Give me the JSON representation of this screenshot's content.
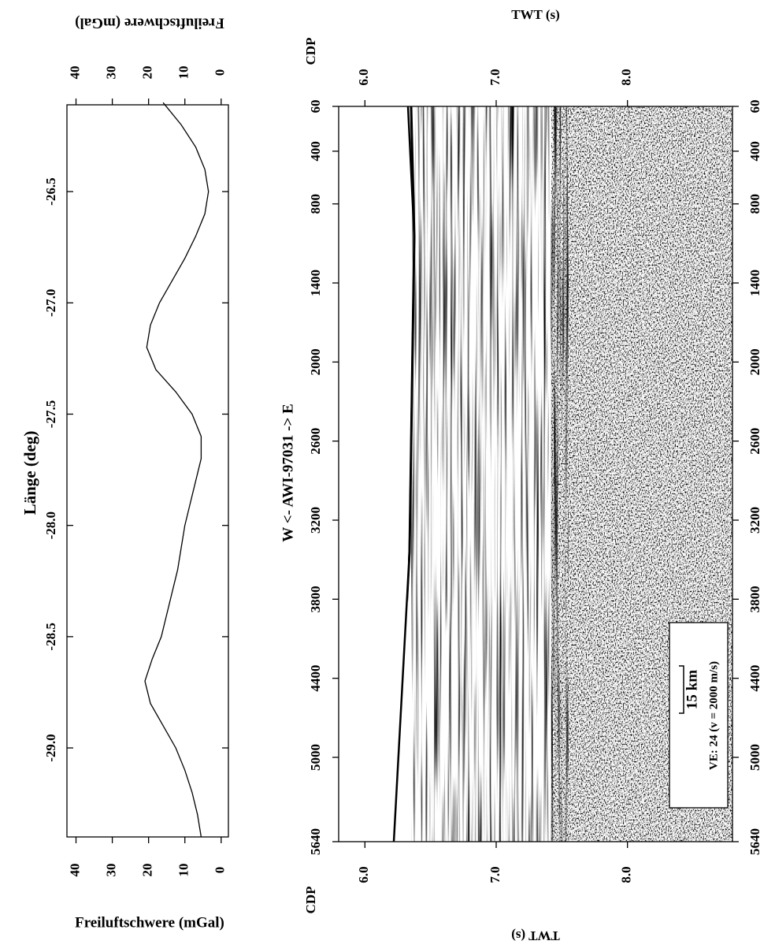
{
  "chart_data": [
    {
      "type": "line",
      "xlabel": "Länge (deg)",
      "ylabel": "Freiluftschwere (mGal)",
      "x": [
        -26.1,
        -26.2,
        -26.3,
        -26.4,
        -26.5,
        -26.6,
        -26.7,
        -26.8,
        -26.9,
        -27.0,
        -27.1,
        -27.2,
        -27.3,
        -27.4,
        -27.5,
        -27.6,
        -27.7,
        -27.8,
        -27.9,
        -28.0,
        -28.1,
        -28.2,
        -28.3,
        -28.4,
        -28.5,
        -28.6,
        -28.7,
        -28.8,
        -28.9,
        -29.0,
        -29.1,
        -29.2,
        -29.3,
        -29.4
      ],
      "values": [
        16,
        11,
        7,
        4.5,
        3.5,
        4.5,
        7,
        10,
        13.5,
        17,
        19.5,
        20.5,
        18,
        12.5,
        8,
        5.5,
        5.5,
        7,
        8.5,
        10,
        11,
        12,
        13.5,
        15,
        16.5,
        19,
        21,
        19.5,
        16,
        12.5,
        10,
        8,
        6.5,
        5.5
      ],
      "color": "#000000",
      "xlim": [
        -26.11,
        -29.4
      ],
      "xticks": [
        -26.5,
        {
          "value": -27.0,
          "label": "-27.0"
        },
        -27.5,
        {
          "value": -28.0,
          "label": "-28.0"
        },
        -28.5,
        {
          "value": -29.0,
          "label": "-29.0"
        }
      ],
      "ylim": [
        -2,
        42.5
      ],
      "yticks": [
        40,
        30,
        20,
        10,
        0
      ]
    },
    {
      "type": "seismic",
      "title": "W <- AWI-97031 -> E",
      "xlabel": "CDP",
      "ylabel": "TWT (s)",
      "xlim": [
        60,
        5640
      ],
      "xticks": [
        60,
        400,
        800,
        1400,
        2000,
        2600,
        3200,
        3800,
        4400,
        5000,
        5640
      ],
      "ylim": [
        5.8,
        8.8
      ],
      "yticks": [
        {
          "value": 6.0,
          "label": "6.0"
        },
        {
          "value": 7.0,
          "label": "7.0"
        },
        {
          "value": 8.0,
          "label": "8.0"
        }
      ],
      "annotations": [
        "15 km",
        "VE: 24 (v = 2000 m/s)"
      ]
    }
  ]
}
